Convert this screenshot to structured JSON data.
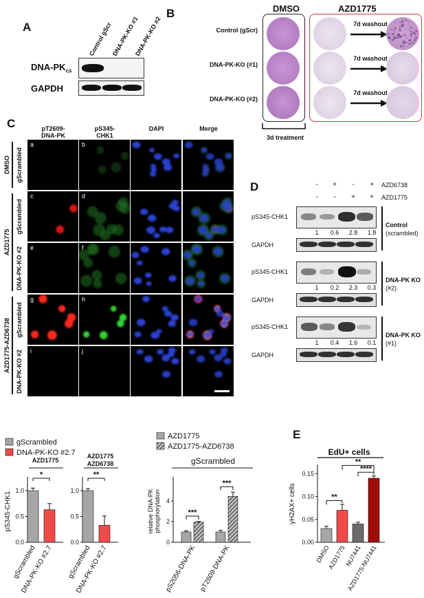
{
  "panelA": {
    "label": "A",
    "lanes": [
      "Control gScr",
      "DNA-PK-KO #1",
      "DNA-PK-KO #2"
    ],
    "rows": [
      {
        "name": "DNA-PK",
        "sub": "cs",
        "bands": [
          1,
          0,
          0
        ]
      },
      {
        "name": "GAPDH",
        "sub": "",
        "bands": [
          1,
          1,
          1
        ]
      }
    ]
  },
  "panelB": {
    "label": "B",
    "col_dmso": "DMSO",
    "col_azd": "AZD1775",
    "rows": [
      "Control (gScr)",
      "DNA-PK-KO (#1)",
      "DNA-PK-KO (#2)"
    ],
    "washout": "7d washout",
    "treatment": "3d treatment"
  },
  "panelC": {
    "label": "C",
    "columns": [
      "pT2609-\nDNA-PK",
      "pS345-\nCHK1",
      "DAPI",
      "Merge"
    ],
    "group_labels": [
      "DMSO",
      "AZD1775",
      "AZD1775-AZD6738"
    ],
    "row_labels": [
      "gScrambled",
      "gScrambled",
      "DNA-PK-KO #2",
      "gScrambled",
      "DNA-PK-KO #2"
    ],
    "letters": [
      "a",
      "b",
      "",
      "",
      "c",
      "d",
      "",
      "",
      "e",
      "f",
      "",
      "",
      "g",
      "h",
      "",
      "",
      "i",
      "j",
      "",
      ""
    ]
  },
  "panelD": {
    "label": "D",
    "treatments": [
      {
        "name": "AZD6738",
        "signs": [
          "-",
          "+",
          "-",
          "+"
        ]
      },
      {
        "name": "AZD1775",
        "signs": [
          "-",
          "-",
          "+",
          "+"
        ]
      }
    ],
    "blocks": [
      {
        "protein": "pS345-CHK1",
        "loading": "GAPDH",
        "quant": [
          "1",
          "0.6",
          "2.8",
          "1.8"
        ],
        "group": "Control",
        "group_sub": "(scrambled)",
        "intensity": [
          0.35,
          0.25,
          0.85,
          0.6
        ]
      },
      {
        "protein": "pS345-CHK1",
        "loading": "GAPDH",
        "quant": [
          "1",
          "0.2",
          "2.3",
          "0.3"
        ],
        "group": "DNA-PK KO",
        "group_sub": "(#2)",
        "intensity": [
          0.4,
          0.12,
          1.0,
          0.15
        ]
      },
      {
        "protein": "pS345-CHK1",
        "loading": "GAPDH",
        "quant": [
          "1",
          "0.4",
          "1.6",
          "0.1"
        ],
        "group": "DNA-PK KO",
        "group_sub": "(#1)",
        "intensity": [
          0.6,
          0.35,
          0.8,
          0.1
        ]
      }
    ]
  },
  "panelE": {
    "label": "E"
  },
  "chart_data": [
    {
      "type": "bar",
      "legend": [
        "gScrambled",
        "DNA-PK-KO #2.7"
      ],
      "colors": [
        "#a6a6a6",
        "#f04a4a"
      ],
      "ylabel": "pS345-CHK1",
      "ylim": [
        0,
        1.2
      ],
      "yticks": [
        "0.0",
        "0.5",
        "1.0"
      ],
      "groups": [
        {
          "title": "AZD1775",
          "categories": [
            "gScrambled",
            "DNA-PK-KO #2.7"
          ],
          "values": [
            1.0,
            0.63
          ],
          "errors": [
            0.05,
            0.12
          ],
          "sig": "*"
        },
        {
          "title": "AZD1775\nAZD6738",
          "categories": [
            "gScrambled",
            "DNA-PK-KO #2.7"
          ],
          "values": [
            1.0,
            0.33
          ],
          "errors": [
            0.04,
            0.18
          ],
          "sig": "**"
        }
      ]
    },
    {
      "type": "bar",
      "title": "gScrambled",
      "legend": [
        "AZD1775",
        "AZD1775-AZD6738"
      ],
      "ylabel": "relative DNA-PK\nphosphorylation",
      "ylim": [
        0,
        6
      ],
      "yticks": [
        "0",
        "2",
        "4"
      ],
      "categories": [
        "pS2056-DNA-PK",
        "pT2609-DNA-PK"
      ],
      "series": [
        {
          "name": "AZD1775",
          "values": [
            1.0,
            1.0
          ],
          "errors": [
            0.1,
            0.15
          ]
        },
        {
          "name": "AZD1775-AZD6738",
          "values": [
            1.95,
            4.45
          ],
          "errors": [
            0.05,
            0.4
          ]
        }
      ],
      "sig": [
        "***",
        "***"
      ]
    },
    {
      "type": "bar",
      "title": "EdU+ cells",
      "ylabel": "γH2AX+ cells",
      "ylim": [
        0,
        0.17
      ],
      "yticks": [
        "0.00",
        "0.05",
        "0.10",
        "0.15"
      ],
      "categories": [
        "DMSO",
        "AZD1775",
        "NU7441",
        "AZD1775-NU7441"
      ],
      "values": [
        0.03,
        0.07,
        0.04,
        0.14
      ],
      "errors": [
        0.005,
        0.013,
        0.004,
        0.005
      ],
      "colors": [
        "#a6a6a6",
        "#f04a4a",
        "#6b6b6b",
        "#a00d0d"
      ],
      "sig": [
        {
          "pair": [
            0,
            1
          ],
          "label": "**"
        },
        {
          "pair": [
            1,
            3
          ],
          "label": "**"
        },
        {
          "pair": [
            2,
            3
          ],
          "label": "****"
        }
      ]
    }
  ]
}
